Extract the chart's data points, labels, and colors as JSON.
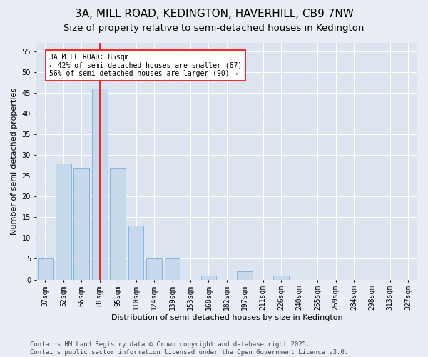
{
  "title1": "3A, MILL ROAD, KEDINGTON, HAVERHILL, CB9 7NW",
  "title2": "Size of property relative to semi-detached houses in Kedington",
  "xlabel": "Distribution of semi-detached houses by size in Kedington",
  "ylabel": "Number of semi-detached properties",
  "categories": [
    "37sqm",
    "52sqm",
    "66sqm",
    "81sqm",
    "95sqm",
    "110sqm",
    "124sqm",
    "139sqm",
    "153sqm",
    "168sqm",
    "182sqm",
    "197sqm",
    "211sqm",
    "226sqm",
    "240sqm",
    "255sqm",
    "269sqm",
    "284sqm",
    "298sqm",
    "313sqm",
    "327sqm"
  ],
  "values": [
    5,
    28,
    27,
    46,
    27,
    13,
    5,
    5,
    0,
    1,
    0,
    2,
    0,
    1,
    0,
    0,
    0,
    0,
    0,
    0,
    0
  ],
  "bar_color": "#c5d8ec",
  "bar_edge_color": "#7aaed6",
  "annotation_label": "3A MILL ROAD: 85sqm",
  "annotation_line1": "← 42% of semi-detached houses are smaller (67)",
  "annotation_line2": "56% of semi-detached houses are larger (90) →",
  "ylim": [
    0,
    57
  ],
  "yticks": [
    0,
    5,
    10,
    15,
    20,
    25,
    30,
    35,
    40,
    45,
    50,
    55
  ],
  "footer": "Contains HM Land Registry data © Crown copyright and database right 2025.\nContains public sector information licensed under the Open Government Licence v3.0.",
  "bg_color": "#e8eef4",
  "plot_bg_color": "#dce5ef",
  "grid_color": "#ffffff",
  "title1_fontsize": 11,
  "title2_fontsize": 9.5,
  "axis_label_fontsize": 8,
  "tick_fontsize": 7,
  "annotation_fontsize": 7,
  "footer_fontsize": 6.5
}
